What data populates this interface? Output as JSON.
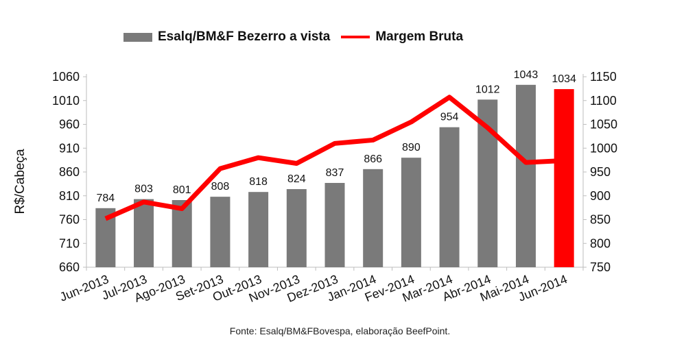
{
  "chart_data": {
    "type": "bar",
    "categories": [
      "Jun-2013",
      "Jul-2013",
      "Ago-2013",
      "Set-2013",
      "Out-2013",
      "Nov-2013",
      "Dez-2013",
      "Jan-2014",
      "Fev-2014",
      "Mar-2014",
      "Abr-2014",
      "Mai-2014",
      "Jun-2014"
    ],
    "series": [
      {
        "name": "Esalq/BM&F Bezerro a vista",
        "type": "bar",
        "axis": "left",
        "values": [
          784,
          803,
          801,
          808,
          818,
          824,
          837,
          866,
          890,
          954,
          1012,
          1043,
          1034
        ],
        "color": "#7a7a7a",
        "highlight_last_color": "#ff0000"
      },
      {
        "name": "Margem Bruta",
        "type": "line",
        "axis": "right",
        "values": [
          852,
          887,
          873,
          957,
          980,
          968,
          1010,
          1017,
          1055,
          1107,
          1043,
          970,
          974
        ],
        "color": "#ff0000"
      }
    ],
    "ylabel": "R$/Cabeça",
    "ylim": [
      660,
      1060
    ],
    "yticks": [
      660,
      710,
      760,
      810,
      860,
      910,
      960,
      1010,
      1060
    ],
    "y2lim": [
      750,
      1150
    ],
    "y2ticks": [
      750,
      800,
      850,
      900,
      950,
      1000,
      1050,
      1100,
      1150
    ],
    "legend_position": "top",
    "grid": false
  },
  "legend": {
    "bar_label": "Esalq/BM&F Bezerro a vista",
    "line_label": "Margem Bruta"
  },
  "source": "Fonte: Esalq/BM&FBovespa, elaboração BeefPoint."
}
